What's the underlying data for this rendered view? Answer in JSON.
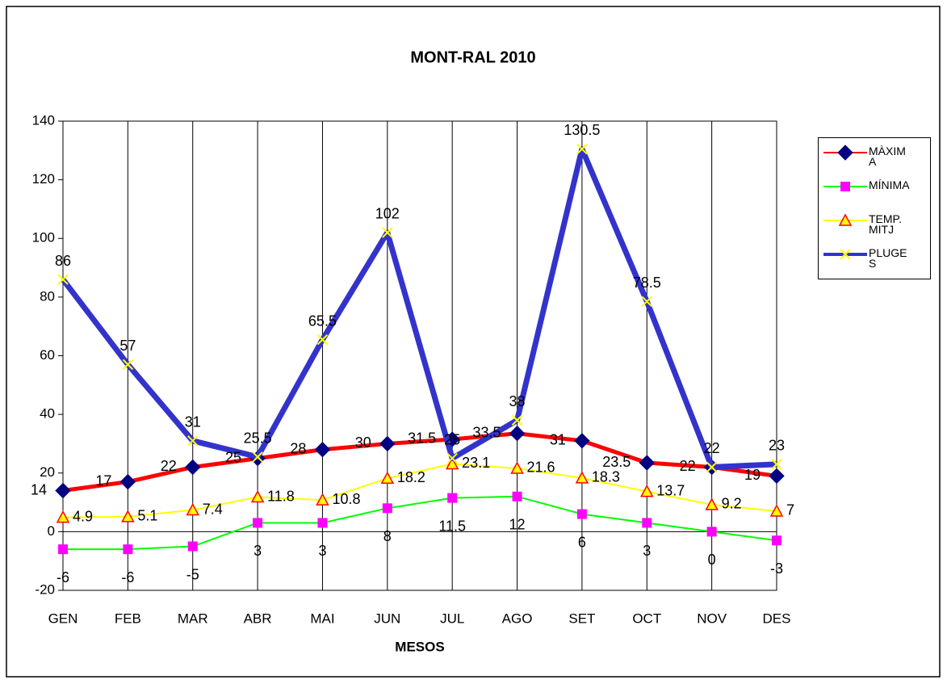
{
  "chart_data": {
    "type": "line",
    "title": "MONT-RAL 2010",
    "x_label": "MESOS",
    "categories": [
      "GEN",
      "FEB",
      "MAR",
      "ABR",
      "MAI",
      "JUN",
      "JUL",
      "AGO",
      "SET",
      "OCT",
      "NOV",
      "DES"
    ],
    "series": [
      {
        "name": "MÀXIMA",
        "color": "#ff0000",
        "marker": "diamond",
        "marker_color": "#000080",
        "values": [
          14,
          17,
          22,
          25,
          28,
          30,
          31.5,
          33.5,
          31,
          23.5,
          22,
          19
        ]
      },
      {
        "name": "MÍNIMA",
        "color": "#00ff00",
        "marker": "square",
        "marker_color": "#ff00ff",
        "values": [
          -6,
          -6,
          -5,
          3,
          3,
          8,
          11.5,
          12,
          6,
          3,
          0,
          -3
        ]
      },
      {
        "name": "TEMP.MITJ",
        "color": "#ffff00",
        "marker": "triangle",
        "marker_color": "#ff0000",
        "values": [
          4.9,
          5.1,
          7.4,
          11.8,
          10.8,
          18.2,
          23.1,
          21.6,
          18.3,
          13.7,
          9.2,
          7
        ]
      },
      {
        "name": "PLUGES",
        "color": "#3333cc",
        "marker": "x",
        "marker_color": "#ffff00",
        "values": [
          86,
          57,
          31,
          25.5,
          65.5,
          102,
          25,
          38,
          130.5,
          78.5,
          22,
          23
        ]
      }
    ],
    "ylim": [
      -20,
      140
    ],
    "yticks": [
      -20,
      0,
      20,
      40,
      60,
      80,
      100,
      120,
      140
    ],
    "grid": "vertical",
    "legend": "right"
  }
}
